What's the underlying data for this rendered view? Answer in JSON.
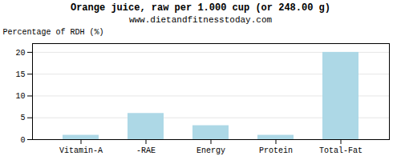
{
  "chart_data": {
    "type": "bar",
    "title": "Orange juice, raw per 1.000 cup (or 248.00 g)",
    "subtitle": "www.dietandfitnesstoday.com",
    "categories": [
      "Vitamin-A",
      "-RAE",
      "Energy",
      "Protein",
      "Total-Fat"
    ],
    "values": [
      1.0,
      6.0,
      3.2,
      1.0,
      20.0
    ],
    "color": "#add8e6",
    "ylabel": "Percentage of RDH (%)",
    "ylim": [
      0,
      22
    ],
    "yticks": [
      0,
      5,
      10,
      15,
      20
    ],
    "grid": true
  }
}
